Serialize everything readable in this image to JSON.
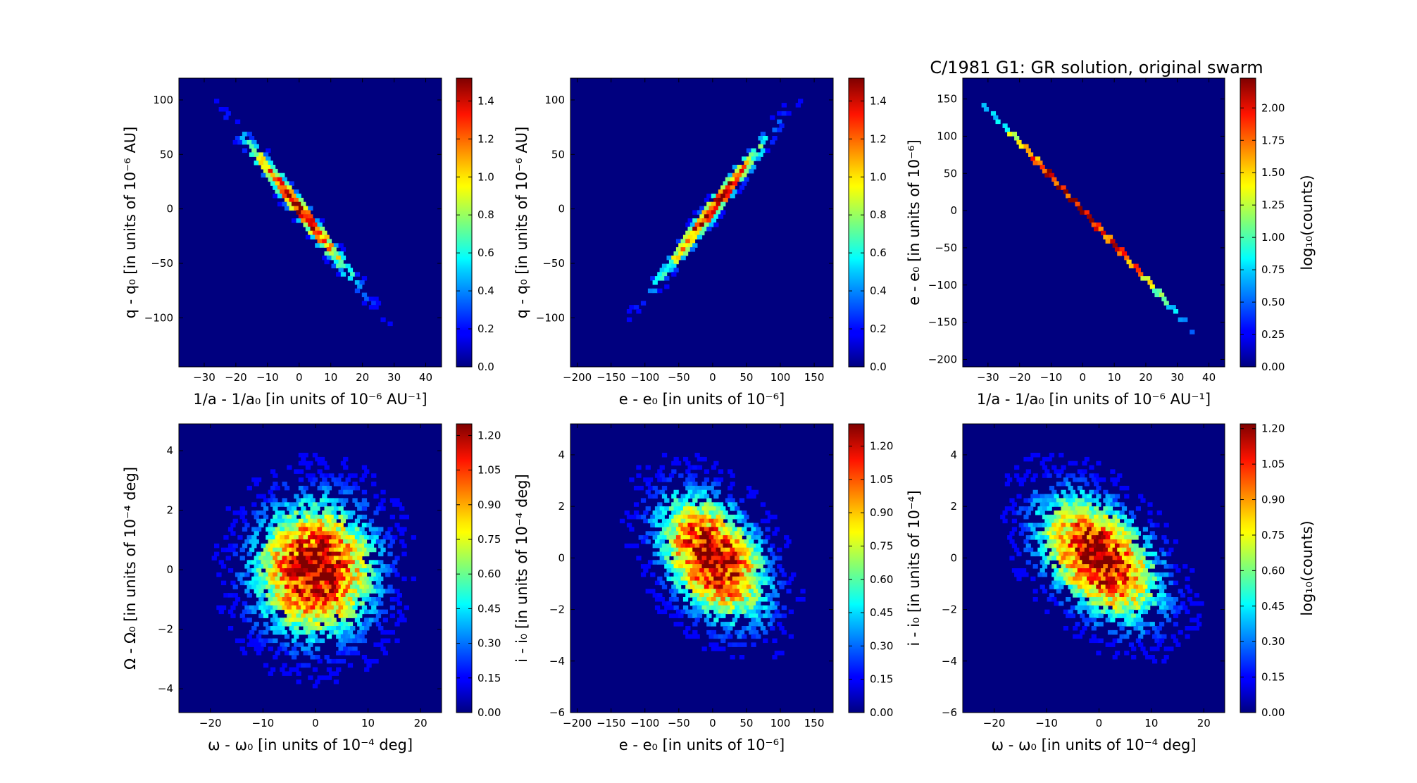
{
  "figure_title": "C/1981 G1:  GR solution, original swarm",
  "colors": {
    "background": "#00007f",
    "frame": "#000000"
  },
  "chart_data": [
    {
      "type": "heatmap",
      "title": "",
      "xlabel": "1/a - 1/a₀ [in units of 10⁻⁶ AU⁻¹]",
      "ylabel": "q - q₀ [in units of 10⁻⁶ AU]",
      "xlim": [
        -38,
        45
      ],
      "ylim": [
        -145,
        120
      ],
      "xticks": [
        "-30",
        "-20",
        "-10",
        "0",
        "10",
        "20",
        "30",
        "40"
      ],
      "yticks": [
        "100",
        "50",
        "0",
        "-50",
        "-100"
      ],
      "colorbar": {
        "min": 0.0,
        "max": 1.52,
        "ticks": [
          "0.0",
          "0.2",
          "0.4",
          "0.6",
          "0.8",
          "1.0",
          "1.2",
          "1.4"
        ]
      },
      "distribution": {
        "type": "correlated-gaussian",
        "mean_x": 0,
        "mean_y": 0,
        "sigma_x": 12,
        "sigma_y": 45,
        "correlation": -0.985
      }
    },
    {
      "type": "heatmap",
      "title": "",
      "xlabel": "e - e₀ [in units of 10⁻⁶]",
      "ylabel": "q - q₀ [in units of 10⁻⁶ AU]",
      "xlim": [
        -210,
        178
      ],
      "ylim": [
        -145,
        120
      ],
      "xticks": [
        "-200",
        "-150",
        "-100",
        "-50",
        "0",
        "50",
        "100",
        "150"
      ],
      "yticks": [
        "100",
        "50",
        "0",
        "-50",
        "-100"
      ],
      "colorbar": {
        "min": 0.0,
        "max": 1.52,
        "ticks": [
          "0.0",
          "0.2",
          "0.4",
          "0.6",
          "0.8",
          "1.0",
          "1.2",
          "1.4"
        ]
      },
      "distribution": {
        "type": "correlated-gaussian",
        "mean_x": 0,
        "mean_y": 0,
        "sigma_x": 55,
        "sigma_y": 45,
        "correlation": 0.985
      }
    },
    {
      "type": "heatmap",
      "title": "C/1981 G1:  GR solution, original swarm",
      "xlabel": "1/a - 1/a₀ [in units of 10⁻⁶ AU⁻¹]",
      "ylabel": "e - e₀ [in units of 10⁻⁶]",
      "xlim": [
        -38,
        45
      ],
      "ylim": [
        -210,
        178
      ],
      "xticks": [
        "-30",
        "-20",
        "-10",
        "0",
        "10",
        "20",
        "30",
        "40"
      ],
      "yticks": [
        "150",
        "100",
        "50",
        "0",
        "-50",
        "-100",
        "-150",
        "-200"
      ],
      "colorbar": {
        "min": 0.0,
        "max": 2.23,
        "ticks": [
          "0.00",
          "0.25",
          "0.50",
          "0.75",
          "1.00",
          "1.25",
          "1.50",
          "1.75",
          "2.00"
        ],
        "label": "log₁₀(counts)"
      },
      "distribution": {
        "type": "line",
        "slope": -4.6,
        "x_from": -36,
        "x_to": 35
      }
    },
    {
      "type": "heatmap",
      "title": "",
      "xlabel": "ω - ω₀ [in units of 10⁻⁴ deg]",
      "ylabel": "Ω - Ω₀ [in units of 10⁻⁴ deg]",
      "xlim": [
        -26,
        24
      ],
      "ylim": [
        -4.8,
        4.9
      ],
      "xticks": [
        "-20",
        "-10",
        "0",
        "10",
        "20"
      ],
      "yticks": [
        "4",
        "2",
        "0",
        "-2",
        "-4"
      ],
      "colorbar": {
        "min": 0.0,
        "max": 1.25,
        "ticks": [
          "0.00",
          "0.15",
          "0.30",
          "0.45",
          "0.60",
          "0.75",
          "0.90",
          "1.05",
          "1.20"
        ]
      },
      "distribution": {
        "type": "correlated-gaussian",
        "mean_x": 0,
        "mean_y": 0,
        "sigma_x": 8,
        "sigma_y": 1.6,
        "correlation": 0.0
      }
    },
    {
      "type": "heatmap",
      "title": "",
      "xlabel": "e - e₀ [in units of 10⁻⁶]",
      "ylabel": "i - i₀ [in units of 10⁻⁴ deg]",
      "xlim": [
        -210,
        178
      ],
      "ylim": [
        -6,
        5.2
      ],
      "xticks": [
        "-200",
        "-150",
        "-100",
        "-50",
        "0",
        "50",
        "100",
        "150"
      ],
      "yticks": [
        "4",
        "2",
        "0",
        "-2",
        "-4",
        "-6"
      ],
      "colorbar": {
        "min": 0.0,
        "max": 1.3,
        "ticks": [
          "0.00",
          "0.15",
          "0.30",
          "0.45",
          "0.60",
          "0.75",
          "0.90",
          "1.05",
          "1.20"
        ]
      },
      "distribution": {
        "type": "correlated-gaussian",
        "mean_x": 0,
        "mean_y": 0,
        "sigma_x": 55,
        "sigma_y": 1.7,
        "correlation": -0.4
      }
    },
    {
      "type": "heatmap",
      "title": "",
      "xlabel": "ω - ω₀ [in units of 10⁻⁴ deg]",
      "ylabel": "i - i₀ [in units of 10⁻⁴]",
      "xlim": [
        -26,
        24
      ],
      "ylim": [
        -6,
        5.2
      ],
      "xticks": [
        "-20",
        "-10",
        "0",
        "10",
        "20"
      ],
      "yticks": [
        "4",
        "2",
        "0",
        "-2",
        "-4",
        "-6"
      ],
      "colorbar": {
        "min": 0.0,
        "max": 1.22,
        "ticks": [
          "0.00",
          "0.15",
          "0.30",
          "0.45",
          "0.60",
          "0.75",
          "0.90",
          "1.05",
          "1.20"
        ],
        "label": "log₁₀(counts)"
      },
      "distribution": {
        "type": "correlated-gaussian",
        "mean_x": 0,
        "mean_y": 0,
        "sigma_x": 8,
        "sigma_y": 1.7,
        "correlation": -0.45
      }
    }
  ]
}
